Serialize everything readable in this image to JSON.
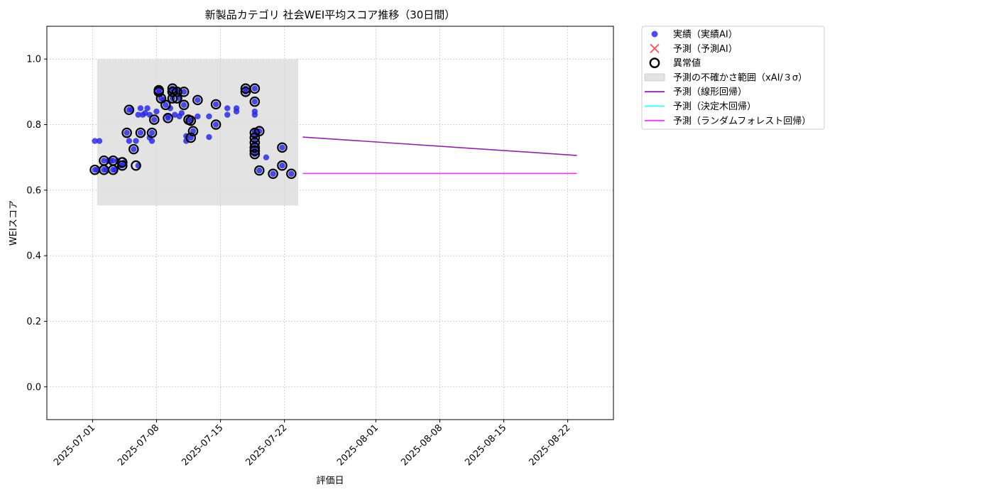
{
  "chart_data": {
    "type": "scatter",
    "title": "新製品カテゴリ 社会WEI平均スコア推移（30日間）",
    "xlabel": "評価日",
    "ylabel": "WEIスコア",
    "x_type": "date",
    "xlim": [
      "2025-06-26",
      "2025-08-27"
    ],
    "ylim": [
      -0.1,
      1.1
    ],
    "xticks": [
      "2025-07-01",
      "2025-07-08",
      "2025-07-15",
      "2025-07-22",
      "2025-08-01",
      "2025-08-08",
      "2025-08-15",
      "2025-08-22"
    ],
    "yticks": [
      "0.0",
      "0.2",
      "0.4",
      "0.6",
      "0.8",
      "1.0"
    ],
    "grid": true,
    "legend_position": "outside-upper-right",
    "colors": {
      "actual": "#2626e6",
      "predicted_marker": "#ff3333",
      "anomaly": "#000000",
      "uncertainty": "#d9d9d9",
      "linear": "#8e24aa",
      "tree": "#33ffff",
      "forest": "#ff33ff"
    },
    "legend": [
      {
        "key": "actual",
        "label": "実績（実績AI）"
      },
      {
        "key": "predicted",
        "label": "予測（予測AI）"
      },
      {
        "key": "anomaly",
        "label": "異常値"
      },
      {
        "key": "uncertainty",
        "label": "予測の不確かさ範囲（xAI/３σ）"
      },
      {
        "key": "linear",
        "label": "予測（線形回帰）"
      },
      {
        "key": "tree",
        "label": "予測（決定木回帰）"
      },
      {
        "key": "forest",
        "label": "予測（ランダムフォレスト回帰）"
      }
    ],
    "uncertainty_band": {
      "x_start": "2025-07-01 12:00",
      "x_end": "2025-07-23 12:00",
      "y_low": 0.553,
      "y_high": 1.0
    },
    "actual": [
      [
        "2025-07-01 06:00",
        0.75
      ],
      [
        "2025-07-01 06:00",
        0.662
      ],
      [
        "2025-07-01 12:00",
        0.662
      ],
      [
        "2025-07-01 18:00",
        0.75
      ],
      [
        "2025-07-02 06:00",
        0.662
      ],
      [
        "2025-07-02 06:00",
        0.69
      ],
      [
        "2025-07-02 12:00",
        0.662
      ],
      [
        "2025-07-02 18:00",
        0.69
      ],
      [
        "2025-07-03 00:00",
        0.69
      ],
      [
        "2025-07-03 06:00",
        0.662
      ],
      [
        "2025-07-03 06:00",
        0.69
      ],
      [
        "2025-07-03 12:00",
        0.662
      ],
      [
        "2025-07-03 18:00",
        0.69
      ],
      [
        "2025-07-04 00:00",
        0.675
      ],
      [
        "2025-07-04 06:00",
        0.675
      ],
      [
        "2025-07-04 12:00",
        0.685
      ],
      [
        "2025-07-04 18:00",
        0.775
      ],
      [
        "2025-07-05 00:00",
        0.75
      ],
      [
        "2025-07-05 00:00",
        0.845
      ],
      [
        "2025-07-05 06:00",
        0.845
      ],
      [
        "2025-07-05 12:00",
        0.725
      ],
      [
        "2025-07-05 18:00",
        0.75
      ],
      [
        "2025-07-06 00:00",
        0.675
      ],
      [
        "2025-07-06 00:00",
        0.83
      ],
      [
        "2025-07-06 06:00",
        0.85
      ],
      [
        "2025-07-06 06:00",
        0.775
      ],
      [
        "2025-07-06 12:00",
        0.83
      ],
      [
        "2025-07-06 18:00",
        0.835
      ],
      [
        "2025-07-07 00:00",
        0.85
      ],
      [
        "2025-07-07 06:00",
        0.83
      ],
      [
        "2025-07-07 06:00",
        0.76
      ],
      [
        "2025-07-07 12:00",
        0.775
      ],
      [
        "2025-07-07 12:00",
        0.75
      ],
      [
        "2025-07-07 18:00",
        0.815
      ],
      [
        "2025-07-08 00:00",
        0.84
      ],
      [
        "2025-07-08 06:00",
        0.9
      ],
      [
        "2025-07-08 06:00",
        0.905
      ],
      [
        "2025-07-08 12:00",
        0.88
      ],
      [
        "2025-07-08 18:00",
        0.875
      ],
      [
        "2025-07-09 00:00",
        0.86
      ],
      [
        "2025-07-09 06:00",
        0.82
      ],
      [
        "2025-07-09 06:00",
        0.825
      ],
      [
        "2025-07-09 12:00",
        0.9
      ],
      [
        "2025-07-09 12:00",
        0.85
      ],
      [
        "2025-07-09 18:00",
        0.91
      ],
      [
        "2025-07-09 18:00",
        0.88
      ],
      [
        "2025-07-10 00:00",
        0.83
      ],
      [
        "2025-07-10 06:00",
        0.9
      ],
      [
        "2025-07-10 06:00",
        0.905
      ],
      [
        "2025-07-10 12:00",
        0.88
      ],
      [
        "2025-07-10 12:00",
        0.825
      ],
      [
        "2025-07-10 18:00",
        0.835
      ],
      [
        "2025-07-11 00:00",
        0.9
      ],
      [
        "2025-07-11 00:00",
        0.86
      ],
      [
        "2025-07-11 06:00",
        0.75
      ],
      [
        "2025-07-11 06:00",
        0.765
      ],
      [
        "2025-07-11 12:00",
        0.815
      ],
      [
        "2025-07-11 18:00",
        0.812
      ],
      [
        "2025-07-11 18:00",
        0.76
      ],
      [
        "2025-07-12 00:00",
        0.78
      ],
      [
        "2025-07-12 12:00",
        0.825
      ],
      [
        "2025-07-12 12:00",
        0.875
      ],
      [
        "2025-07-13 18:00",
        0.762
      ],
      [
        "2025-07-13 18:00",
        0.825
      ],
      [
        "2025-07-14 12:00",
        0.8
      ],
      [
        "2025-07-14 12:00",
        0.862
      ],
      [
        "2025-07-15 18:00",
        0.85
      ],
      [
        "2025-07-15 18:00",
        0.83
      ],
      [
        "2025-07-16 18:00",
        0.85
      ],
      [
        "2025-07-16 18:00",
        0.84
      ],
      [
        "2025-07-17 18:00",
        0.91
      ],
      [
        "2025-07-17 18:00",
        0.9
      ],
      [
        "2025-07-18 18:00",
        0.91
      ],
      [
        "2025-07-18 18:00",
        0.87
      ],
      [
        "2025-07-18 18:00",
        0.84
      ],
      [
        "2025-07-18 18:00",
        0.83
      ],
      [
        "2025-07-18 18:00",
        0.78
      ],
      [
        "2025-07-18 18:00",
        0.775
      ],
      [
        "2025-07-18 18:00",
        0.76
      ],
      [
        "2025-07-18 18:00",
        0.745
      ],
      [
        "2025-07-18 18:00",
        0.73
      ],
      [
        "2025-07-18 18:00",
        0.72
      ],
      [
        "2025-07-18 18:00",
        0.71
      ],
      [
        "2025-07-19 06:00",
        0.78
      ],
      [
        "2025-07-19 06:00",
        0.66
      ],
      [
        "2025-07-20 00:00",
        0.7
      ],
      [
        "2025-07-20 18:00",
        0.65
      ],
      [
        "2025-07-21 18:00",
        0.73
      ],
      [
        "2025-07-21 18:00",
        0.675
      ],
      [
        "2025-07-22 18:00",
        0.65
      ]
    ],
    "anomalies": [
      [
        "2025-07-01 06:00",
        0.662
      ],
      [
        "2025-07-02 06:00",
        0.662
      ],
      [
        "2025-07-02 06:00",
        0.69
      ],
      [
        "2025-07-03 06:00",
        0.662
      ],
      [
        "2025-07-03 06:00",
        0.69
      ],
      [
        "2025-07-04 06:00",
        0.675
      ],
      [
        "2025-07-04 06:00",
        0.685
      ],
      [
        "2025-07-04 18:00",
        0.775
      ],
      [
        "2025-07-05 00:00",
        0.845
      ],
      [
        "2025-07-05 12:00",
        0.725
      ],
      [
        "2025-07-05 18:00",
        0.675
      ],
      [
        "2025-07-06 06:00",
        0.775
      ],
      [
        "2025-07-07 12:00",
        0.775
      ],
      [
        "2025-07-07 18:00",
        0.815
      ],
      [
        "2025-07-08 06:00",
        0.9
      ],
      [
        "2025-07-08 06:00",
        0.905
      ],
      [
        "2025-07-08 12:00",
        0.88
      ],
      [
        "2025-07-09 00:00",
        0.86
      ],
      [
        "2025-07-09 06:00",
        0.82
      ],
      [
        "2025-07-09 18:00",
        0.9
      ],
      [
        "2025-07-09 18:00",
        0.91
      ],
      [
        "2025-07-09 18:00",
        0.88
      ],
      [
        "2025-07-10 06:00",
        0.9
      ],
      [
        "2025-07-10 06:00",
        0.88
      ],
      [
        "2025-07-11 00:00",
        0.9
      ],
      [
        "2025-07-11 00:00",
        0.86
      ],
      [
        "2025-07-11 12:00",
        0.815
      ],
      [
        "2025-07-11 18:00",
        0.812
      ],
      [
        "2025-07-11 18:00",
        0.76
      ],
      [
        "2025-07-12 00:00",
        0.78
      ],
      [
        "2025-07-12 12:00",
        0.875
      ],
      [
        "2025-07-14 12:00",
        0.8
      ],
      [
        "2025-07-14 12:00",
        0.862
      ],
      [
        "2025-07-17 18:00",
        0.91
      ],
      [
        "2025-07-17 18:00",
        0.9
      ],
      [
        "2025-07-18 18:00",
        0.91
      ],
      [
        "2025-07-18 18:00",
        0.87
      ],
      [
        "2025-07-18 18:00",
        0.775
      ],
      [
        "2025-07-18 18:00",
        0.76
      ],
      [
        "2025-07-18 18:00",
        0.745
      ],
      [
        "2025-07-18 18:00",
        0.73
      ],
      [
        "2025-07-18 18:00",
        0.72
      ],
      [
        "2025-07-18 18:00",
        0.71
      ],
      [
        "2025-07-19 06:00",
        0.78
      ],
      [
        "2025-07-19 06:00",
        0.66
      ],
      [
        "2025-07-20 18:00",
        0.65
      ],
      [
        "2025-07-21 18:00",
        0.73
      ],
      [
        "2025-07-21 18:00",
        0.675
      ],
      [
        "2025-07-22 18:00",
        0.65
      ]
    ],
    "lines": [
      {
        "key": "linear",
        "points": [
          [
            "2025-07-24 00:00",
            0.762
          ],
          [
            "2025-08-23 00:00",
            0.706
          ]
        ]
      },
      {
        "key": "tree",
        "points": [
          [
            "2025-07-24 00:00",
            0.651
          ],
          [
            "2025-08-23 00:00",
            0.651
          ]
        ]
      },
      {
        "key": "forest",
        "points": [
          [
            "2025-07-24 00:00",
            0.651
          ],
          [
            "2025-08-23 00:00",
            0.651
          ]
        ]
      }
    ]
  }
}
